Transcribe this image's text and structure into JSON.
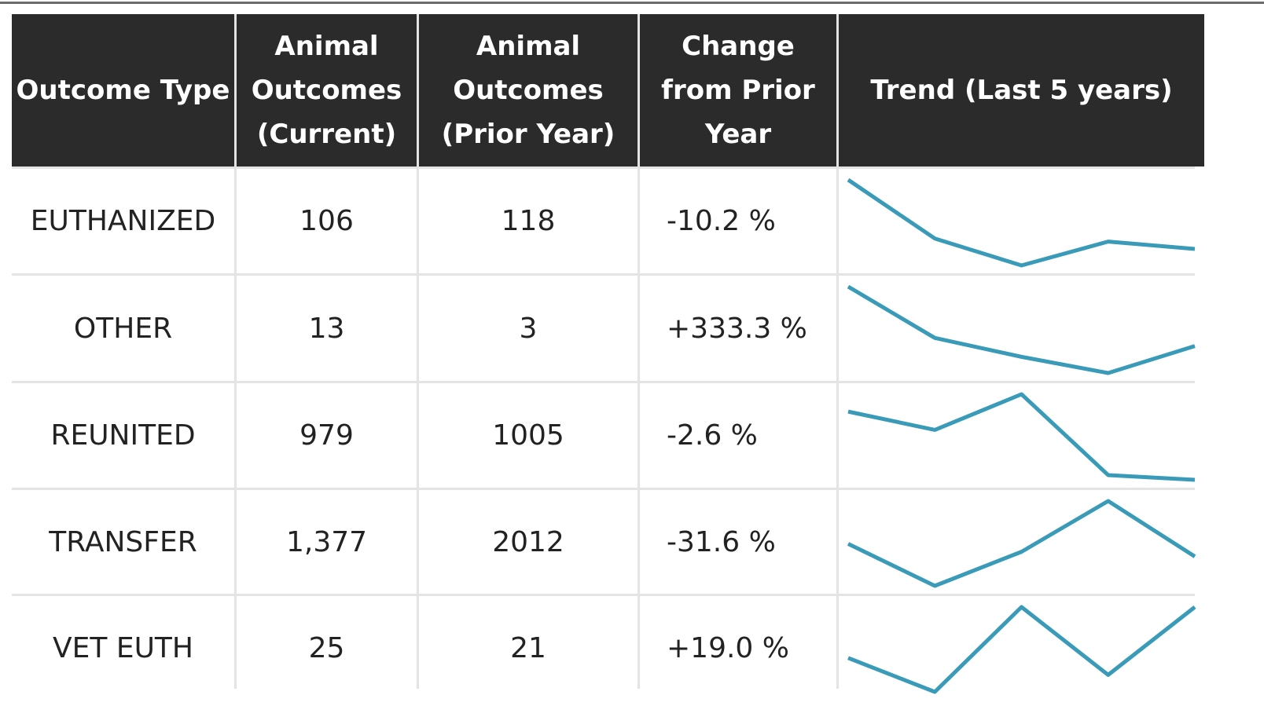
{
  "table": {
    "header": [
      "Outcome Type",
      "Animal Outcomes (Current)",
      "Animal Outcomes (Prior Year)",
      "Change from Prior Year",
      "Trend (Last 5 years)"
    ],
    "rows": [
      {
        "cells": [
          "EUTHANIZED",
          "106",
          "118",
          "-10.2 %"
        ],
        "trend": [
          219,
          123,
          79,
          118,
          106
        ]
      },
      {
        "cells": [
          "OTHER",
          "13",
          "3",
          "+333.3 %"
        ],
        "trend": [
          35,
          16,
          9,
          3,
          13
        ]
      },
      {
        "cells": [
          "REUNITED",
          "979",
          "1005",
          "-2.6 %"
        ],
        "trend": [
          1352,
          1252,
          1447,
          1005,
          979
        ]
      },
      {
        "cells": [
          "TRANSFER",
          "1,377",
          "2012",
          "-31.6 %"
        ],
        "trend": [
          1522,
          1041,
          1431,
          2012,
          1377
        ]
      },
      {
        "cells": [
          "VET EUTH",
          "25",
          "21",
          "+19.0 %"
        ],
        "trend": [
          22,
          20,
          25,
          21,
          25
        ]
      }
    ]
  }
}
